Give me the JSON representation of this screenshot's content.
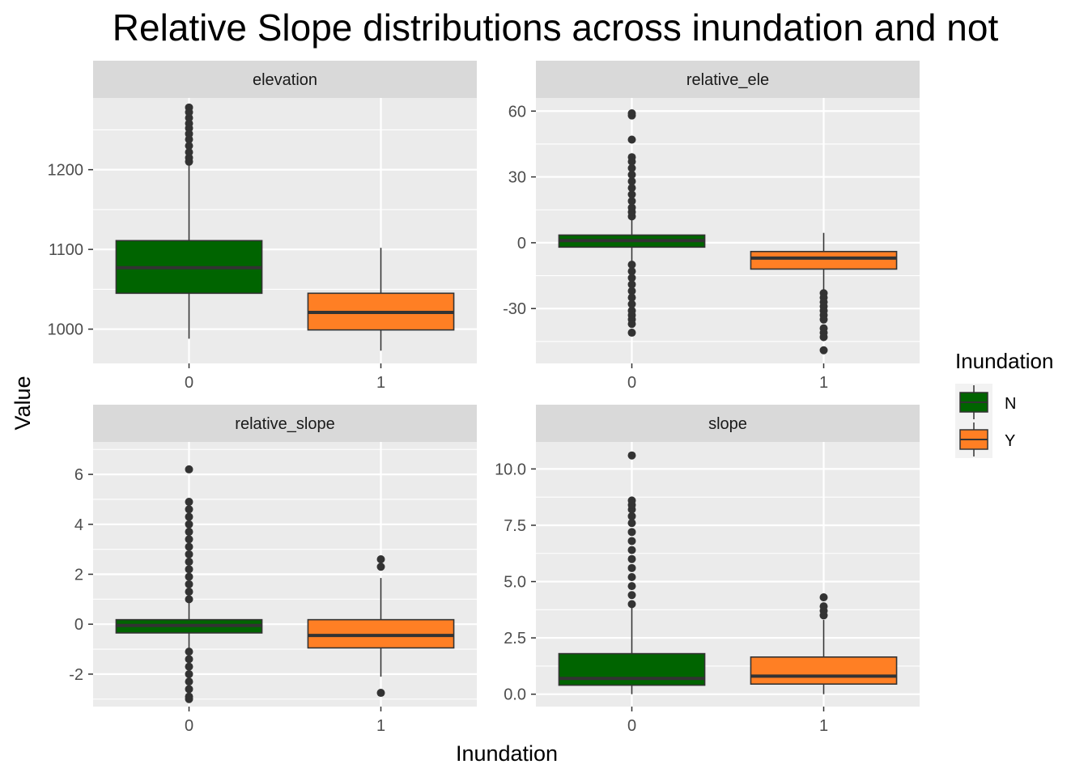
{
  "chart_data": {
    "type": "boxplot",
    "title": "Relative Slope distributions across inundation and not",
    "xlabel": "Inundation",
    "ylabel": "Value",
    "legend": {
      "title": "Inundation",
      "placement": "right",
      "entries": [
        {
          "label": "N",
          "color": "#006400"
        },
        {
          "label": "Y",
          "color": "#FF7F24"
        }
      ]
    },
    "grid": true,
    "categories": [
      "0",
      "1"
    ],
    "panels": [
      {
        "name": "elevation",
        "ylim": [
          957,
          1290
        ],
        "yticks": [
          1000,
          1100,
          1200
        ],
        "ytick_labels": [
          "1000",
          "1100",
          "1200"
        ],
        "boxes": [
          {
            "x": "0",
            "group": "N",
            "min": 988,
            "q1": 1045,
            "median": 1077,
            "q3": 1111,
            "max": 1209,
            "outliers": [
              1210,
              1215,
              1222,
              1230,
              1238,
              1245,
              1252,
              1258,
              1265,
              1272,
              1278
            ]
          },
          {
            "x": "1",
            "group": "Y",
            "min": 973,
            "q1": 999,
            "median": 1021,
            "q3": 1045,
            "max": 1102,
            "outliers": []
          }
        ]
      },
      {
        "name": "relative_ele",
        "ylim": [
          -55,
          66
        ],
        "yticks": [
          -30,
          0,
          30,
          60
        ],
        "ytick_labels": [
          "-30",
          "0",
          "30",
          "60"
        ],
        "boxes": [
          {
            "x": "0",
            "group": "N",
            "min": -9,
            "q1": -2,
            "median": 1,
            "q3": 3.5,
            "max": 11,
            "outliers": [
              12,
              14,
              16,
              19,
              22,
              25,
              28,
              31,
              34,
              37,
              39,
              47,
              58,
              59,
              -10,
              -13,
              -16,
              -19,
              -22,
              -25,
              -28,
              -31,
              -33,
              -35,
              -37,
              -41
            ]
          },
          {
            "x": "1",
            "group": "Y",
            "min": -22,
            "q1": -12,
            "median": -7,
            "q3": -4,
            "max": 4.5,
            "outliers": [
              -23,
              -25,
              -27,
              -29,
              -31,
              -33,
              -35,
              -39,
              -41,
              -43,
              -49
            ]
          }
        ]
      },
      {
        "name": "relative_slope",
        "ylim": [
          -3.3,
          7.3
        ],
        "yticks": [
          -2,
          0,
          2,
          4,
          6
        ],
        "ytick_labels": [
          "-2",
          "0",
          "2",
          "4",
          "6"
        ],
        "boxes": [
          {
            "x": "0",
            "group": "N",
            "min": -1.0,
            "q1": -0.35,
            "median": -0.05,
            "q3": 0.18,
            "max": 0.95,
            "outliers": [
              1.0,
              1.3,
              1.6,
              1.9,
              2.2,
              2.5,
              2.8,
              3.1,
              3.4,
              3.7,
              4.0,
              4.3,
              4.6,
              4.9,
              6.2,
              -1.1,
              -1.4,
              -1.7,
              -2.0,
              -2.3,
              -2.6,
              -2.9,
              -3.0
            ]
          },
          {
            "x": "1",
            "group": "Y",
            "min": -2.1,
            "q1": -0.95,
            "median": -0.45,
            "q3": 0.18,
            "max": 1.85,
            "outliers": [
              2.3,
              2.6,
              -2.75
            ]
          }
        ]
      },
      {
        "name": "slope",
        "ylim": [
          -0.55,
          11.2
        ],
        "yticks": [
          0.0,
          2.5,
          5.0,
          7.5,
          10.0
        ],
        "ytick_labels": [
          "0.0",
          "2.5",
          "5.0",
          "7.5",
          "10.0"
        ],
        "boxes": [
          {
            "x": "0",
            "group": "N",
            "min": 0.0,
            "q1": 0.4,
            "median": 0.7,
            "q3": 1.8,
            "max": 3.9,
            "outliers": [
              4.0,
              4.4,
              4.8,
              5.2,
              5.6,
              6.0,
              6.4,
              6.8,
              7.2,
              7.6,
              7.9,
              8.2,
              8.4,
              8.6,
              10.6
            ]
          },
          {
            "x": "1",
            "group": "Y",
            "min": 0.0,
            "q1": 0.45,
            "median": 0.8,
            "q3": 1.65,
            "max": 3.3,
            "outliers": [
              3.5,
              3.7,
              3.9,
              4.3
            ]
          }
        ]
      }
    ]
  }
}
